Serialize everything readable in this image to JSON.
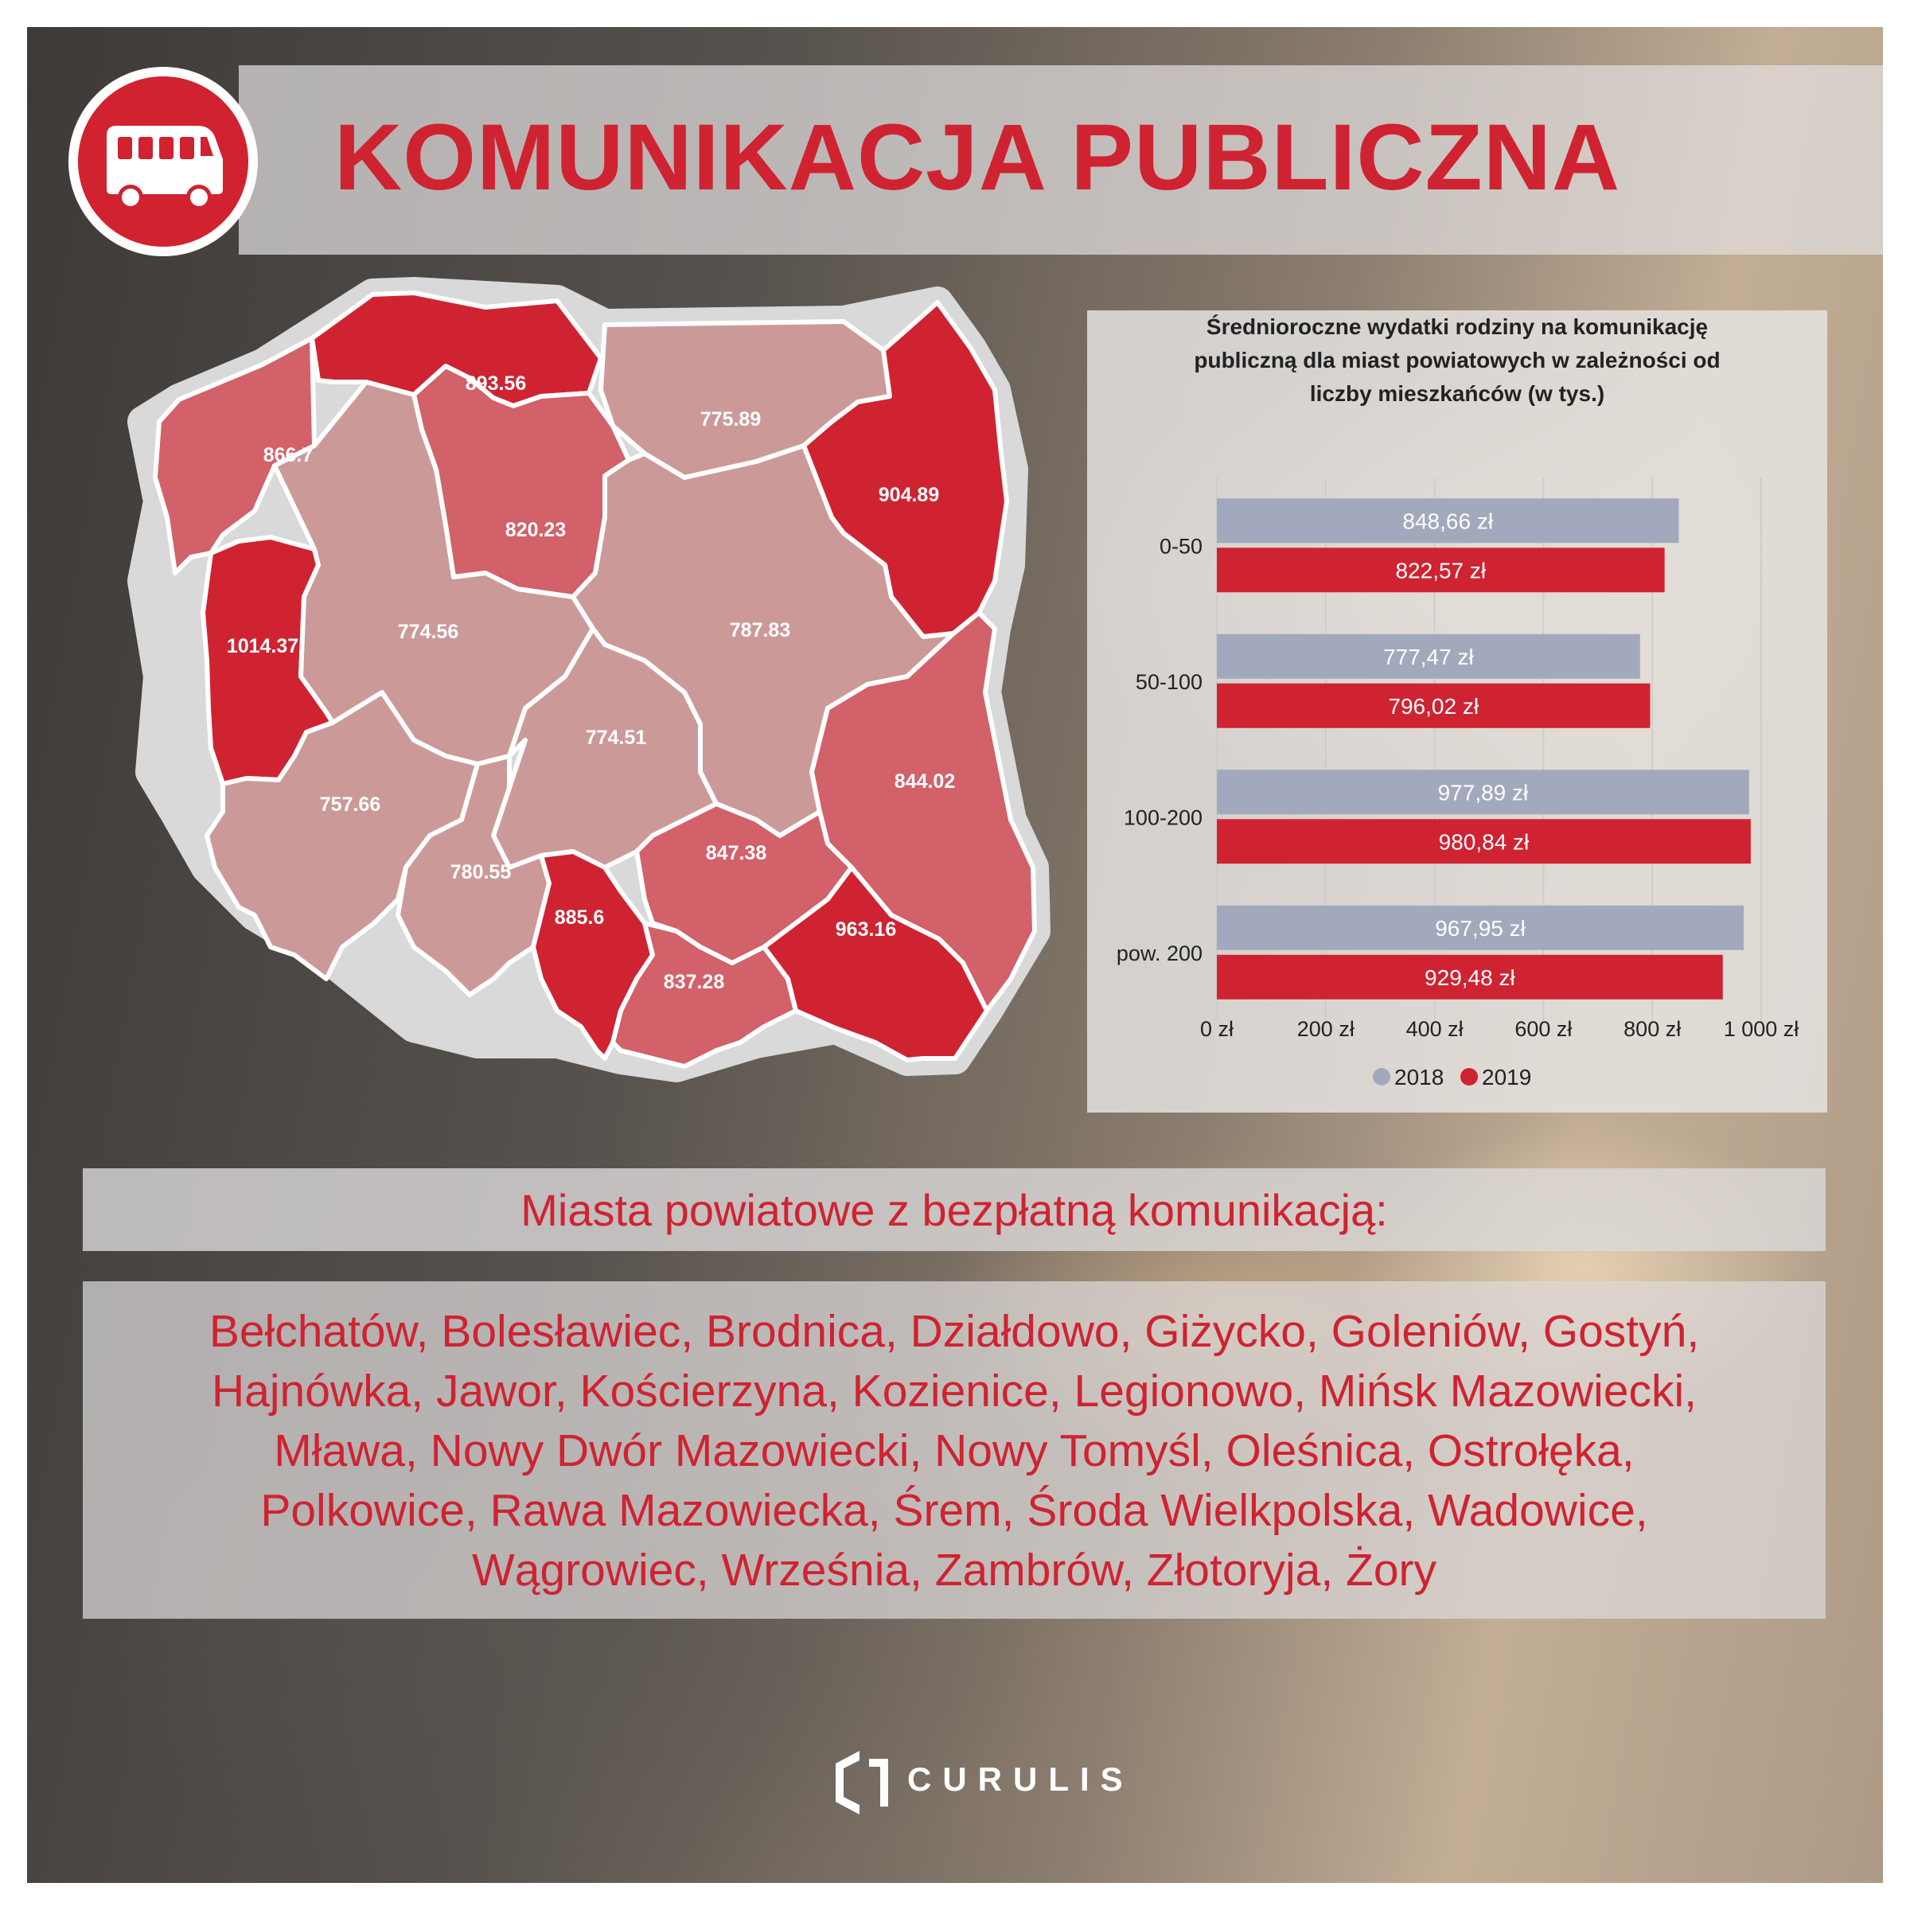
{
  "header": {
    "title": "KOMUNIKACJA PUBLICZNA",
    "icon": "bus-icon"
  },
  "map": {
    "regions": [
      {
        "name": "zachodniopomorskie",
        "value": "866.7",
        "level": "medium"
      },
      {
        "name": "pomorskie",
        "value": "893.56",
        "level": "high"
      },
      {
        "name": "warminsko-mazurskie",
        "value": "775.89",
        "level": "low"
      },
      {
        "name": "podlaskie",
        "value": "904.89",
        "level": "high"
      },
      {
        "name": "lubuskie",
        "value": "1014.37",
        "level": "high"
      },
      {
        "name": "kujawsko-pomorskie",
        "value": "820.23",
        "level": "medium"
      },
      {
        "name": "wielkopolskie",
        "value": "774.56",
        "level": "low"
      },
      {
        "name": "mazowieckie",
        "value": "787.83",
        "level": "low"
      },
      {
        "name": "lodzkie",
        "value": "774.51",
        "level": "low"
      },
      {
        "name": "dolnoslaskie",
        "value": "757.66",
        "level": "low"
      },
      {
        "name": "lubelskie",
        "value": "844.02",
        "level": "medium"
      },
      {
        "name": "opolskie",
        "value": "780.55",
        "level": "low"
      },
      {
        "name": "slaskie",
        "value": "885.6",
        "level": "high"
      },
      {
        "name": "swietokrzyskie",
        "value": "847.38",
        "level": "medium"
      },
      {
        "name": "malopolskie",
        "value": "837.28",
        "level": "medium"
      },
      {
        "name": "podkarpackie",
        "value": "963.16",
        "level": "high"
      }
    ],
    "colors": {
      "low": "#cc9999",
      "medium": "#d2616a",
      "high": "#cf2331",
      "border": "#ffffff",
      "halo": "#d9d9d9"
    }
  },
  "chart_data": {
    "type": "bar",
    "orientation": "horizontal",
    "title": "Średnioroczne wydatki rodziny na komunikację publiczną dla miast powiatowych w zależności od liczby mieszkańców (w tys.)",
    "categories": [
      "0-50",
      "50-100",
      "100-200",
      "pow. 200"
    ],
    "series": [
      {
        "name": "2018",
        "color": "#a3a9bd",
        "values": [
          848.66,
          777.47,
          977.89,
          967.95
        ],
        "labels": [
          "848,66 zł",
          "777,47 zł",
          "977,89 zł",
          "967,95 zł"
        ]
      },
      {
        "name": "2019",
        "color": "#cf2331",
        "values": [
          822.57,
          796.02,
          980.84,
          929.48
        ],
        "labels": [
          "822,57 zł",
          "796,02 zł",
          "980,84 zł",
          "929,48 zł"
        ]
      }
    ],
    "xlim": [
      0,
      1000
    ],
    "xticks": [
      0,
      200,
      400,
      600,
      800,
      1000
    ],
    "xtick_labels": [
      "0 zł",
      "200 zł",
      "400 zł",
      "600 zł",
      "800 zł",
      "1 000 zł"
    ],
    "grid": true,
    "legend": "bottom"
  },
  "free_transport": {
    "title": "Miasta powiatowe z bezpłatną komunikacją:",
    "lines": [
      "Bełchatów, Bolesławiec, Brodnica, Działdowo, Giżycko, Goleniów, Gostyń,",
      "Hajnówka, Jawor, Kościerzyna, Kozienice, Legionowo, Mińsk Mazowiecki,",
      "Mława, Nowy Dwór Mazowiecki, Nowy Tomyśl, Oleśnica, Ostrołęka,",
      "Polkowice, Rawa Mazowiecka, Śrem, Środa Wielkpolska, Wadowice,",
      "Wągrowiec, Września, Zambrów, Złotoryja, Żory"
    ]
  },
  "footer": {
    "brand": "CURULIS"
  }
}
